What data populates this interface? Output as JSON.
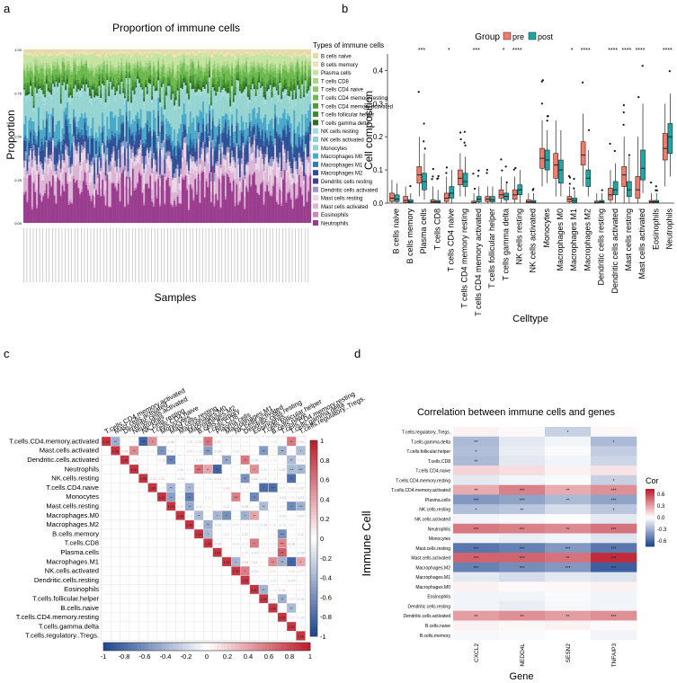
{
  "panels": {
    "a": {
      "label": "a",
      "title": "Proportion of immune cells",
      "xlabel": "Samples",
      "ylabel": "Proportion",
      "yticks": [
        "0.00",
        "0.25",
        "0.50",
        "0.75",
        "1.00"
      ],
      "legend_title": "Types of immune cells"
    },
    "b": {
      "label": "b",
      "legend_title": "Group",
      "groups": [
        {
          "name": "pre",
          "color": "#f27b6b"
        },
        {
          "name": "post",
          "color": "#1fa6a6"
        }
      ],
      "xlabel": "Celltype",
      "ylabel": "Cell composition",
      "yticks": [
        "0.0",
        "0.1",
        "0.2",
        "0.3",
        "0.4"
      ]
    },
    "c": {
      "label": "c",
      "colorbar_ticks": [
        "-1",
        "-0.8",
        "-0.6",
        "-0.4",
        "-0.2",
        "0",
        "0.2",
        "0.4",
        "0.6",
        "0.8",
        "1"
      ],
      "side_ticks": [
        "1",
        "0.8",
        "0.6",
        "0.4",
        "0.2",
        "0",
        "-0.2",
        "-0.4",
        "-0.6",
        "-0.8",
        "-1"
      ]
    },
    "d": {
      "label": "d",
      "title": "Correlation between immune cells and genes",
      "xlabel": "Gene",
      "ylabel": "Immune Cell",
      "legend_title": "Cor",
      "legend_ticks": [
        "0.6",
        "0.3",
        "0.0",
        "-0.3",
        "-0.6"
      ]
    }
  },
  "chart_data": [
    {
      "type": "bar",
      "stacked": true,
      "panel": "a",
      "n_samples": 180,
      "ylim": [
        0,
        1
      ],
      "series": [
        {
          "name": "B cells naive",
          "color": "#e8d9a8",
          "mean": 0.02
        },
        {
          "name": "B cells memory",
          "color": "#efe3b6",
          "mean": 0.01
        },
        {
          "name": "Plasma cells",
          "color": "#c7e3a1",
          "mean": 0.05
        },
        {
          "name": "T cells CD8",
          "color": "#a8d68a",
          "mean": 0.02
        },
        {
          "name": "T cells CD4 naive",
          "color": "#8cc96b",
          "mean": 0.02
        },
        {
          "name": "T cells CD4 memory resting",
          "color": "#6db84f",
          "mean": 0.05
        },
        {
          "name": "T cells CD4 memory activated",
          "color": "#4e9e38",
          "mean": 0.02
        },
        {
          "name": "T cells follicular helper",
          "color": "#3d8a2c",
          "mean": 0.02
        },
        {
          "name": "T cells gamma delta",
          "color": "#2e6e22",
          "mean": 0.02
        },
        {
          "name": "NK cells resting",
          "color": "#a6dcd6",
          "mean": 0.03
        },
        {
          "name": "NK cells activated",
          "color": "#8fd1cc",
          "mean": 0.01
        },
        {
          "name": "Monocytes",
          "color": "#96d4d2",
          "mean": 0.13
        },
        {
          "name": "Macrophages M0",
          "color": "#4aa8c8",
          "mean": 0.08
        },
        {
          "name": "Macrophages M1",
          "color": "#2f7fb0",
          "mean": 0.02
        },
        {
          "name": "Macrophages M2",
          "color": "#2c4f96",
          "mean": 0.09
        },
        {
          "name": "Dendritic cells resting",
          "color": "#3e3f8f",
          "mean": 0.01
        },
        {
          "name": "Dendritic cells activated",
          "color": "#9b9bc9",
          "mean": 0.03
        },
        {
          "name": "Mast cells resting",
          "color": "#ead6e6",
          "mean": 0.06
        },
        {
          "name": "Mast cells activated",
          "color": "#dcb4d6",
          "mean": 0.09
        },
        {
          "name": "Eosinophils",
          "color": "#c98bbf",
          "mean": 0.01
        },
        {
          "name": "Neutrophils",
          "color": "#9b3d8e",
          "mean": 0.2
        }
      ]
    },
    {
      "type": "box",
      "panel": "b",
      "ylim": [
        0,
        0.45
      ],
      "categories": [
        "B cells naive",
        "B cells memory",
        "Plasma cells",
        "T cells CD8",
        "T cells CD4 naive",
        "T cells CD4 memory resting",
        "T cells CD4 memory activated",
        "T cells follicular helper",
        "T cells gamma delta",
        "NK cells resting",
        "NK cells activated",
        "Monocytes",
        "Macrophages M0",
        "Macrophages M1",
        "Macrophages M2",
        "Dendritic cells resting",
        "Dendritic cells activated",
        "Mast cells resting",
        "Mast cells activated",
        "Eosinophils",
        "Neutrophils"
      ],
      "significance": [
        "",
        "",
        "***",
        "",
        "*",
        "",
        "***",
        "",
        "*",
        "****",
        "",
        "",
        "",
        "*",
        "****",
        "",
        "****",
        "****",
        "****",
        "",
        "****"
      ],
      "pre": [
        [
          0,
          0.005,
          0.015,
          0.03,
          0.07
        ],
        [
          0,
          0.002,
          0.008,
          0.02,
          0.05
        ],
        [
          0.02,
          0.06,
          0.085,
          0.11,
          0.2
        ],
        [
          0,
          0.001,
          0.004,
          0.01,
          0.05
        ],
        [
          0,
          0.005,
          0.015,
          0.03,
          0.08
        ],
        [
          0.02,
          0.055,
          0.075,
          0.1,
          0.15
        ],
        [
          0,
          0,
          0.002,
          0.006,
          0.03
        ],
        [
          0,
          0.005,
          0.012,
          0.02,
          0.05
        ],
        [
          0,
          0.015,
          0.025,
          0.04,
          0.08
        ],
        [
          0,
          0.012,
          0.025,
          0.04,
          0.08
        ],
        [
          0,
          0.001,
          0.004,
          0.01,
          0.03
        ],
        [
          0.05,
          0.105,
          0.135,
          0.165,
          0.25
        ],
        [
          0.02,
          0.075,
          0.115,
          0.15,
          0.25
        ],
        [
          0,
          0.004,
          0.012,
          0.02,
          0.05
        ],
        [
          0.05,
          0.115,
          0.145,
          0.185,
          0.27
        ],
        [
          0,
          0,
          0.002,
          0.006,
          0.03
        ],
        [
          0,
          0.01,
          0.025,
          0.045,
          0.1
        ],
        [
          0,
          0.05,
          0.085,
          0.11,
          0.2
        ],
        [
          0,
          0.015,
          0.04,
          0.08,
          0.2
        ],
        [
          0,
          0.001,
          0.004,
          0.008,
          0.03
        ],
        [
          0.05,
          0.13,
          0.165,
          0.21,
          0.3
        ]
      ],
      "post": [
        [
          0,
          0.005,
          0.012,
          0.025,
          0.06
        ],
        [
          0,
          0.001,
          0.004,
          0.01,
          0.03
        ],
        [
          0.01,
          0.04,
          0.065,
          0.09,
          0.15
        ],
        [
          0,
          0.001,
          0.003,
          0.008,
          0.04
        ],
        [
          0,
          0.015,
          0.03,
          0.05,
          0.1
        ],
        [
          0.02,
          0.05,
          0.065,
          0.09,
          0.14
        ],
        [
          0,
          0.004,
          0.012,
          0.02,
          0.05
        ],
        [
          0,
          0.004,
          0.01,
          0.02,
          0.05
        ],
        [
          0,
          0.01,
          0.02,
          0.03,
          0.06
        ],
        [
          0,
          0.025,
          0.04,
          0.055,
          0.1
        ],
        [
          0,
          0.001,
          0.003,
          0.008,
          0.03
        ],
        [
          0.06,
          0.1,
          0.13,
          0.16,
          0.22
        ],
        [
          0.02,
          0.06,
          0.1,
          0.13,
          0.22
        ],
        [
          0,
          0.002,
          0.008,
          0.015,
          0.04
        ],
        [
          0.02,
          0.05,
          0.075,
          0.1,
          0.16
        ],
        [
          0,
          0.001,
          0.004,
          0.008,
          0.03
        ],
        [
          0,
          0.025,
          0.04,
          0.065,
          0.12
        ],
        [
          0,
          0.02,
          0.04,
          0.065,
          0.14
        ],
        [
          0.03,
          0.07,
          0.105,
          0.16,
          0.3
        ],
        [
          0,
          0.001,
          0.004,
          0.008,
          0.03
        ],
        [
          0.08,
          0.15,
          0.2,
          0.24,
          0.33
        ]
      ]
    },
    {
      "type": "heatmap",
      "panel": "c",
      "shape": "upper-triangle",
      "labels": [
        "T.cells.CD4.memory.activated",
        "Mast.cells.activated",
        "Dendritic.cells.activated",
        "Neutrophils",
        "NK.cells.resting",
        "T.cells.CD4.naive",
        "Monocytes",
        "Mast.cells.resting",
        "Macrophages.M0",
        "Macrophages.M2",
        "B.cells.memory",
        "T.cells.CD8",
        "Plasma.cells",
        "Macrophages.M1",
        "NK.cells.activated",
        "Dendritic.cells.resting",
        "Eosinophils",
        "T.cells.follicular.helper",
        "B.cells.naive",
        "T.cells.CD4.memory.resting",
        "T.cells.gamma.delta",
        "T.cells.regulatory..Tregs."
      ],
      "value_range": [
        -1,
        1
      ]
    },
    {
      "type": "heatmap",
      "panel": "d",
      "rows": [
        "T.cells.regulatory..Tregs.",
        "T.cells.gamma.delta",
        "T.cells.follicular.helper",
        "T.cells.CD8",
        "T.cells.CD4.naive",
        "T.cells.CD4.memory.resting",
        "T.cells.CD4.memory.activated",
        "Plasma.cells",
        "NK.cells.resting",
        "NK.cells.activated",
        "Neutrophils",
        "Monocytes",
        "Mast.cells.resting",
        "Mast.cells.activated",
        "Macrophages.M2",
        "Macrophages.M1",
        "Macrophages.M0",
        "Eosinophils",
        "Dendritic.cells.resting",
        "Dendritic.cells.activated",
        "B.cells.naive",
        "B.cells.memory"
      ],
      "columns": [
        "CXCL2",
        "NEDD4L",
        "SESN2",
        "TNFAIP3"
      ],
      "values": [
        [
          0.05,
          0.02,
          -0.2,
          0.03
        ],
        [
          -0.3,
          -0.1,
          -0.05,
          -0.3
        ],
        [
          -0.28,
          -0.08,
          -0.02,
          -0.22
        ],
        [
          -0.3,
          -0.1,
          -0.05,
          -0.18
        ],
        [
          0.15,
          0.12,
          0.05,
          0.1
        ],
        [
          -0.1,
          -0.05,
          -0.02,
          -0.2
        ],
        [
          0.3,
          0.45,
          0.3,
          0.4
        ],
        [
          -0.45,
          -0.4,
          -0.3,
          -0.4
        ],
        [
          -0.28,
          -0.25,
          -0.15,
          -0.25
        ],
        [
          -0.05,
          -0.03,
          0.0,
          -0.1
        ],
        [
          0.48,
          0.45,
          0.42,
          0.5
        ],
        [
          -0.05,
          -0.08,
          -0.05,
          -0.12
        ],
        [
          -0.6,
          -0.55,
          -0.45,
          -0.6
        ],
        [
          0.55,
          0.55,
          0.5,
          0.75
        ],
        [
          -0.55,
          -0.5,
          -0.45,
          -0.7
        ],
        [
          -0.1,
          -0.15,
          -0.1,
          -0.12
        ],
        [
          0.05,
          0.02,
          0.03,
          0.05
        ],
        [
          -0.05,
          -0.05,
          -0.02,
          -0.05
        ],
        [
          -0.05,
          -0.08,
          -0.03,
          -0.05
        ],
        [
          0.35,
          0.4,
          0.35,
          0.4
        ],
        [
          0.05,
          0.03,
          0.05,
          0.02
        ],
        [
          -0.03,
          -0.02,
          0.0,
          -0.05
        ]
      ],
      "stars": [
        [
          "",
          "",
          "*",
          ""
        ],
        [
          "**",
          "",
          "",
          "*"
        ],
        [
          "*",
          "",
          "",
          ""
        ],
        [
          "**",
          "",
          "",
          ""
        ],
        [
          "",
          "",
          "",
          ""
        ],
        [
          "",
          "",
          "",
          "*"
        ],
        [
          "**",
          "***",
          "**",
          "***"
        ],
        [
          "***",
          "***",
          "**",
          "***"
        ],
        [
          "*",
          "**",
          "",
          "*"
        ],
        [
          "",
          "",
          "",
          ""
        ],
        [
          "***",
          "***",
          "**",
          "***"
        ],
        [
          "",
          "",
          "",
          ""
        ],
        [
          "***",
          "***",
          "***",
          "***"
        ],
        [
          "***",
          "***",
          "**",
          "***"
        ],
        [
          "***",
          "***",
          "***",
          "***"
        ],
        [
          "",
          "",
          "",
          ""
        ],
        [
          "",
          "",
          "",
          ""
        ],
        [
          "",
          "",
          "",
          ""
        ],
        [
          "",
          "",
          "",
          ""
        ],
        [
          "**",
          "**",
          "**",
          "***"
        ],
        [
          "",
          "",
          "",
          ""
        ],
        [
          "",
          "",
          "",
          ""
        ]
      ]
    }
  ]
}
